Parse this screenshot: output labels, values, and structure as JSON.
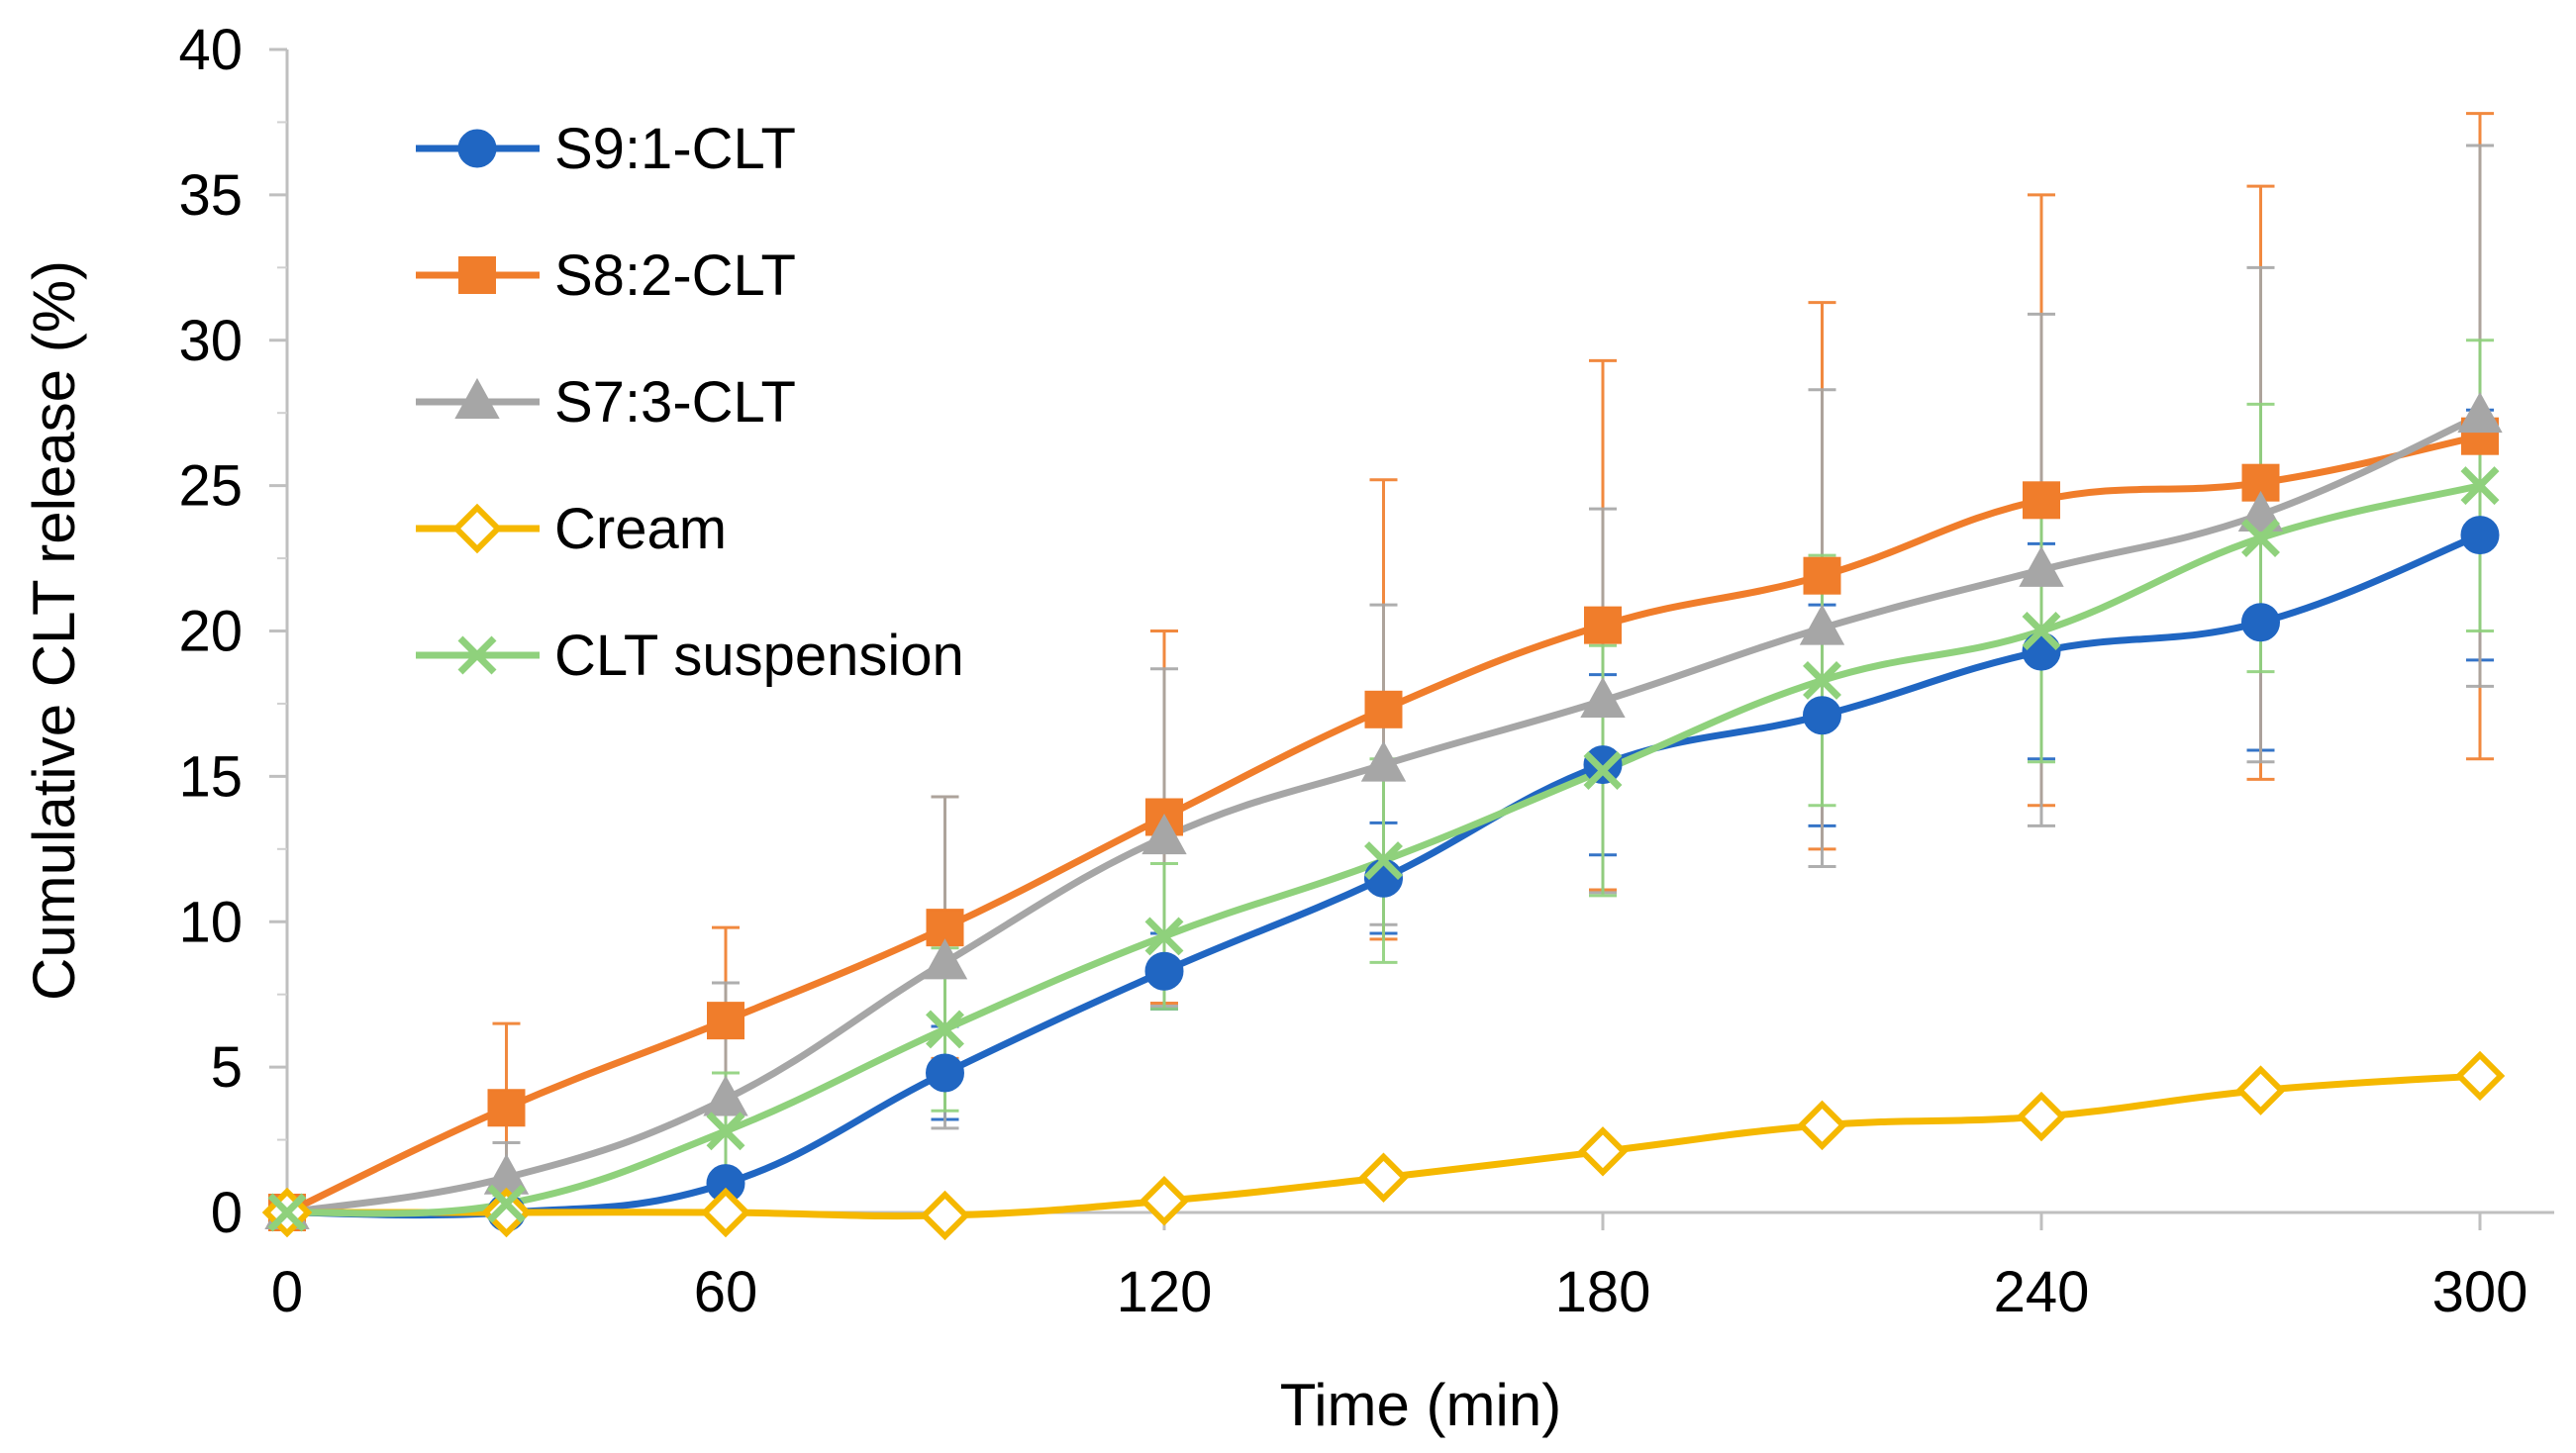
{
  "chart_data": {
    "type": "line",
    "title": "",
    "xlabel": "Time (min)",
    "ylabel": "Cumulative CLT release (%)",
    "xlim": [
      0,
      300
    ],
    "ylim": [
      0,
      40
    ],
    "xticks": [
      0,
      60,
      120,
      180,
      240,
      300
    ],
    "yticks": [
      0,
      5,
      10,
      15,
      20,
      25,
      30,
      35,
      40
    ],
    "grid": false,
    "legend_position": "top-left",
    "x": [
      0,
      30,
      60,
      90,
      120,
      150,
      180,
      210,
      240,
      270,
      300
    ],
    "series": [
      {
        "name": "S9:1-CLT",
        "color": "#2066c2",
        "marker": "circle",
        "values": [
          0,
          0,
          1.0,
          4.8,
          8.3,
          11.5,
          15.4,
          17.1,
          19.3,
          20.3,
          23.3
        ],
        "error": [
          0,
          0,
          0.2,
          1.6,
          1.3,
          1.9,
          3.1,
          3.8,
          3.7,
          4.4,
          4.3
        ]
      },
      {
        "name": "S8:2-CLT",
        "color": "#f07d2b",
        "marker": "square",
        "values": [
          0,
          3.6,
          6.6,
          9.8,
          13.6,
          17.3,
          20.2,
          21.9,
          24.5,
          25.1,
          26.7
        ],
        "error": [
          0,
          2.9,
          3.2,
          4.5,
          6.4,
          7.9,
          9.1,
          9.4,
          10.5,
          10.2,
          11.1
        ]
      },
      {
        "name": "S7:3-CLT",
        "color": "#a6a6a6",
        "marker": "triangle",
        "values": [
          0,
          1.2,
          3.9,
          8.6,
          12.9,
          15.4,
          17.6,
          20.1,
          22.1,
          24.0,
          27.4
        ],
        "error": [
          0,
          1.2,
          4.0,
          5.7,
          5.8,
          5.5,
          6.6,
          8.2,
          8.8,
          8.5,
          9.3
        ]
      },
      {
        "name": "Cream",
        "color": "#f5b800",
        "marker": "diamond",
        "values": [
          0,
          0,
          0,
          -0.1,
          0.4,
          1.2,
          2.1,
          3.0,
          3.3,
          4.2,
          4.7
        ],
        "error": [
          0,
          0,
          0,
          0,
          0,
          0,
          0,
          0,
          0,
          0,
          0
        ]
      },
      {
        "name": "CLT suspension",
        "color": "#8fd17c",
        "marker": "x",
        "values": [
          0,
          0.3,
          2.8,
          6.3,
          9.5,
          12.1,
          15.2,
          18.3,
          20.0,
          23.2,
          25.0
        ],
        "error": [
          0,
          0.3,
          2.0,
          2.8,
          2.5,
          3.5,
          4.3,
          4.3,
          4.5,
          4.6,
          5.0
        ]
      }
    ]
  }
}
